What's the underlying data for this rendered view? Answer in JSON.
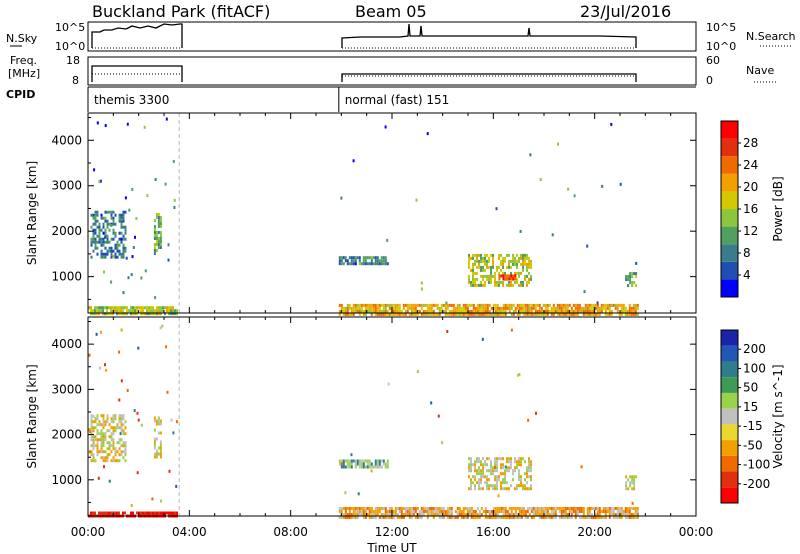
{
  "header": {
    "title": "Buckland Park (fitACF)",
    "beam": "Beam 05",
    "date": "23/Jul/2016"
  },
  "status_panels": {
    "nsky_label": "N.Sky",
    "nsky_ticks": [
      "10^5",
      "10^0"
    ],
    "nsearch_label": "N.Search",
    "nsearch_ticks": [
      "10^5",
      "10^0"
    ],
    "freq_label_1": "Freq.",
    "freq_label_2": "[MHz]",
    "freq_ticks": [
      "18",
      "8"
    ],
    "nave_label": "Nave",
    "nave_ticks": [
      "60",
      "0"
    ],
    "cpid_label": "CPID",
    "cpid_segments": [
      {
        "start_h": 0.0,
        "end_h": 3.55,
        "name": "themis 3300"
      },
      {
        "start_h": 9.9,
        "end_h": 21.7,
        "name": "normal (fast) 151"
      }
    ]
  },
  "colors": {
    "power": [
      "#0000ff",
      "#1f4fb0",
      "#3a7d8a",
      "#52a060",
      "#8cc63f",
      "#d4c800",
      "#f2a000",
      "#ef6b00",
      "#e03010",
      "#ff0000"
    ],
    "velocity": [
      "#1a24a8",
      "#2257b5",
      "#2e7d8c",
      "#3f9a55",
      "#9ad24a",
      "#c0c0c0",
      "#e8d830",
      "#f2a000",
      "#ef6b00",
      "#e03010",
      "#ff0000"
    ]
  },
  "chart_data": [
    {
      "type": "heatmap",
      "name": "Power",
      "xlabel": "",
      "ylabel": "Slant Range [km]",
      "xlim_hours": [
        0,
        24
      ],
      "ylim_km": [
        200,
        4600
      ],
      "yticks": [
        1000,
        2000,
        3000,
        4000
      ],
      "colorbar_label": "Power [dB]",
      "colorbar_ticks": [
        "4",
        "8",
        "12",
        "16",
        "20",
        "24",
        "28"
      ],
      "colorbar_range": [
        0,
        32
      ],
      "regions": [
        {
          "t0": 0.1,
          "t1": 1.5,
          "r0": 1400,
          "r1": 2450,
          "value": 8
        },
        {
          "t0": 2.6,
          "t1": 2.9,
          "r0": 1500,
          "r1": 2400,
          "value": 12
        },
        {
          "t0": 9.9,
          "t1": 11.8,
          "r0": 1300,
          "r1": 1450,
          "value": 8
        },
        {
          "t0": 15.0,
          "t1": 17.5,
          "r0": 800,
          "r1": 1500,
          "value": 16
        },
        {
          "t0": 16.2,
          "t1": 16.9,
          "r0": 950,
          "r1": 1050,
          "value": 28
        },
        {
          "t0": 21.2,
          "t1": 21.6,
          "r0": 800,
          "r1": 1100,
          "value": 12
        },
        {
          "t0": 0.0,
          "t1": 3.5,
          "r0": 200,
          "r1": 350,
          "value": 16
        },
        {
          "t0": 9.9,
          "t1": 21.7,
          "r0": 200,
          "r1": 400,
          "value": 20
        }
      ]
    },
    {
      "type": "heatmap",
      "name": "Velocity",
      "xlabel": "Time UT",
      "ylabel": "Slant Range [km]",
      "xlim_hours": [
        0,
        24
      ],
      "ylim_km": [
        200,
        4600
      ],
      "xticks": [
        "00:00",
        "04:00",
        "08:00",
        "12:00",
        "16:00",
        "20:00",
        "00:00"
      ],
      "yticks": [
        1000,
        2000,
        3000,
        4000
      ],
      "colorbar_label": "Velocity [m s^-1]",
      "colorbar_ticks": [
        "-200",
        "-100",
        "-50",
        "-15",
        "15",
        "50",
        "100",
        "200"
      ],
      "regions": [
        {
          "t0": 0.1,
          "t1": 1.5,
          "r0": 1400,
          "r1": 2450,
          "value": 0
        },
        {
          "t0": 2.6,
          "t1": 2.9,
          "r0": 1500,
          "r1": 2400,
          "value": 0
        },
        {
          "t0": 9.9,
          "t1": 11.8,
          "r0": 1300,
          "r1": 1450,
          "value": 30
        },
        {
          "t0": 15.0,
          "t1": 17.5,
          "r0": 800,
          "r1": 1500,
          "value": 0
        },
        {
          "t0": 21.2,
          "t1": 21.6,
          "r0": 800,
          "r1": 1100,
          "value": 0
        },
        {
          "t0": 0.0,
          "t1": 3.5,
          "r0": 200,
          "r1": 300,
          "value": -200
        },
        {
          "t0": 9.9,
          "t1": 21.7,
          "r0": 200,
          "r1": 400,
          "value": -30
        }
      ]
    }
  ]
}
